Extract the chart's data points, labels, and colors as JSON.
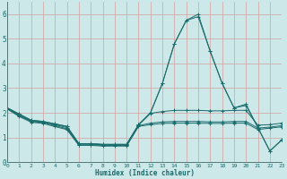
{
  "xlabel": "Humidex (Indice chaleur)",
  "xlim": [
    0,
    23
  ],
  "ylim": [
    0,
    6.5
  ],
  "yticks": [
    0,
    1,
    2,
    3,
    4,
    5,
    6
  ],
  "xtick_labels": [
    "0",
    "1",
    "2",
    "3",
    "4",
    "5",
    "6",
    "7",
    "8",
    "9",
    "10",
    "11",
    "12",
    "13",
    "14",
    "15",
    "16",
    "17",
    "18",
    "19",
    "20",
    "21",
    "22",
    "23"
  ],
  "bg_color": "#cce8e8",
  "grid_color": "#d4a0a0",
  "line_color": "#1a6b6b",
  "curves": [
    [
      2.2,
      1.95,
      1.7,
      1.65,
      1.55,
      1.45,
      0.75,
      0.75,
      0.72,
      0.72,
      0.72,
      1.52,
      2.0,
      3.2,
      4.8,
      5.75,
      6.0,
      4.5,
      3.2,
      2.2,
      2.35,
      1.4,
      0.45,
      0.9
    ],
    [
      2.2,
      1.95,
      1.7,
      1.65,
      1.55,
      1.45,
      0.75,
      0.75,
      0.72,
      0.72,
      0.72,
      1.52,
      2.0,
      3.2,
      4.8,
      5.75,
      5.9,
      4.5,
      3.2,
      2.2,
      2.3,
      1.4,
      0.45,
      0.9
    ],
    [
      2.2,
      1.9,
      1.68,
      1.62,
      1.52,
      1.4,
      0.73,
      0.73,
      0.7,
      0.7,
      0.7,
      1.5,
      1.98,
      2.05,
      2.1,
      2.1,
      2.1,
      2.08,
      2.08,
      2.1,
      2.1,
      1.5,
      1.52,
      1.58
    ],
    [
      2.18,
      1.88,
      1.65,
      1.6,
      1.48,
      1.35,
      0.7,
      0.7,
      0.68,
      0.68,
      0.68,
      1.48,
      1.58,
      1.63,
      1.65,
      1.65,
      1.65,
      1.63,
      1.63,
      1.65,
      1.65,
      1.38,
      1.42,
      1.48
    ],
    [
      2.15,
      1.85,
      1.62,
      1.57,
      1.44,
      1.32,
      0.68,
      0.68,
      0.65,
      0.65,
      0.65,
      1.45,
      1.52,
      1.57,
      1.58,
      1.58,
      1.58,
      1.57,
      1.57,
      1.58,
      1.58,
      1.32,
      1.38,
      1.43
    ]
  ],
  "figsize": [
    3.2,
    2.0
  ],
  "dpi": 100
}
